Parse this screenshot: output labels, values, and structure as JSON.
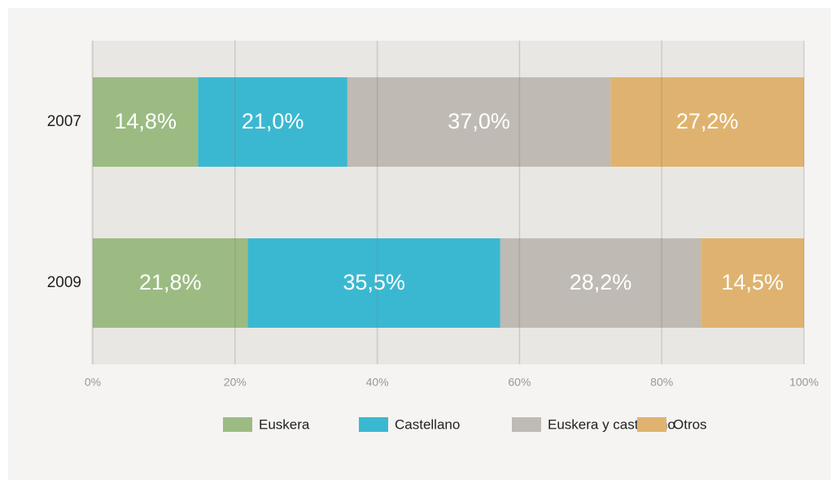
{
  "chart_data": {
    "type": "stacked-bar-horizontal",
    "categories": [
      "2007",
      "2009"
    ],
    "series": [
      {
        "name": "Euskera",
        "color": "#9cbb83",
        "values": [
          14.8,
          21.8
        ],
        "value_labels": [
          "14,8%",
          "21,8%"
        ]
      },
      {
        "name": "Castellano",
        "color": "#3bb8d1",
        "values": [
          21.0,
          35.5
        ],
        "value_labels": [
          "21,0%",
          "35,5%"
        ]
      },
      {
        "name": "Euskera y castellano",
        "color": "#bfbab3",
        "values": [
          37.0,
          28.2
        ],
        "value_labels": [
          "37,0%",
          "28,2%"
        ]
      },
      {
        "name": "Otros",
        "color": "#dfb36f",
        "values": [
          27.2,
          14.5
        ],
        "value_labels": [
          "27,2%",
          "14,5%"
        ]
      }
    ],
    "xlim": [
      0,
      100
    ],
    "xticks": [
      {
        "value": 0,
        "label": "0%"
      },
      {
        "value": 20,
        "label": "20%"
      },
      {
        "value": 40,
        "label": "40%"
      },
      {
        "value": 60,
        "label": "60%"
      },
      {
        "value": 80,
        "label": "80%"
      },
      {
        "value": 100,
        "label": "100%"
      }
    ],
    "grid": true,
    "legend": "bottom"
  }
}
